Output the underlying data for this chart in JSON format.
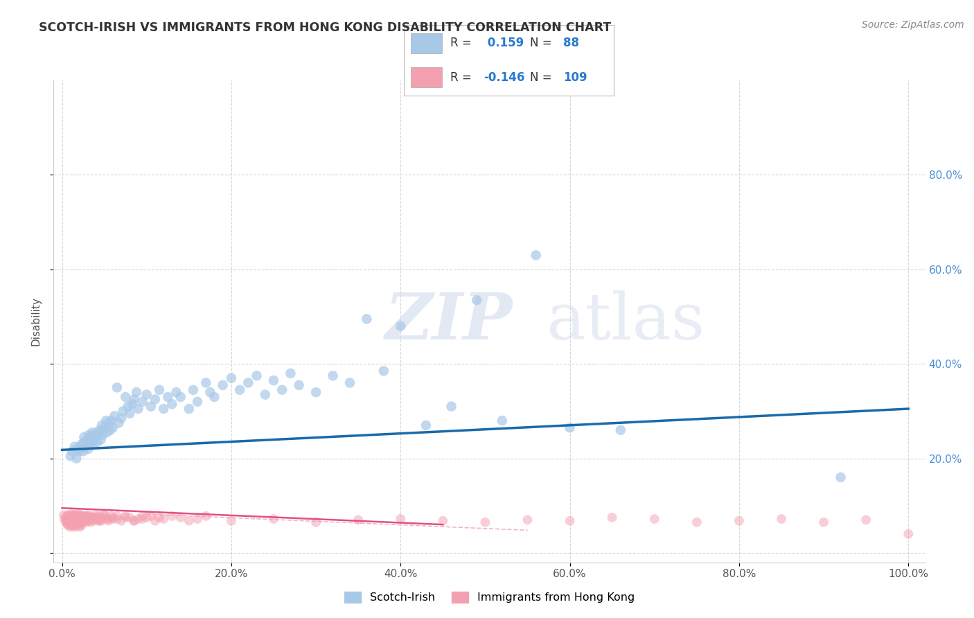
{
  "title": "SCOTCH-IRISH VS IMMIGRANTS FROM HONG KONG DISABILITY CORRELATION CHART",
  "source": "Source: ZipAtlas.com",
  "ylabel": "Disability",
  "watermark_zip": "ZIP",
  "watermark_atlas": "atlas",
  "legend_label1": "Scotch-Irish",
  "legend_label2": "Immigrants from Hong Kong",
  "r1": 0.159,
  "n1": 88,
  "r2": -0.146,
  "n2": 109,
  "color_blue": "#a8c8e8",
  "color_pink": "#f4a0b0",
  "color_line_blue": "#1a6aaa",
  "color_line_pink": "#e05080",
  "color_line_pink_dash": "#f0a0b8",
  "bg_color": "#ffffff",
  "grid_color": "#cccccc",
  "title_color": "#333333",
  "title_fontsize": 12.5,
  "source_fontsize": 10,
  "xlim": [
    -0.01,
    1.02
  ],
  "ylim": [
    -0.02,
    1.0
  ],
  "xticks": [
    0.0,
    0.2,
    0.4,
    0.6,
    0.8,
    1.0
  ],
  "yticks": [
    0.0,
    0.2,
    0.4,
    0.6,
    0.8
  ],
  "xticklabels": [
    "0.0%",
    "20.0%",
    "40.0%",
    "60.0%",
    "80.0%",
    "100.0%"
  ],
  "yticklabels_right": [
    "20.0%",
    "40.0%",
    "60.0%",
    "80.0%"
  ],
  "scotch_irish_x": [
    0.01,
    0.012,
    0.015,
    0.017,
    0.018,
    0.02,
    0.022,
    0.023,
    0.025,
    0.026,
    0.027,
    0.028,
    0.03,
    0.031,
    0.032,
    0.033,
    0.034,
    0.035,
    0.036,
    0.037,
    0.038,
    0.04,
    0.041,
    0.042,
    0.043,
    0.045,
    0.046,
    0.047,
    0.048,
    0.05,
    0.052,
    0.053,
    0.055,
    0.057,
    0.058,
    0.06,
    0.062,
    0.065,
    0.067,
    0.07,
    0.072,
    0.075,
    0.078,
    0.08,
    0.083,
    0.085,
    0.088,
    0.09,
    0.095,
    0.1,
    0.105,
    0.11,
    0.115,
    0.12,
    0.125,
    0.13,
    0.135,
    0.14,
    0.15,
    0.155,
    0.16,
    0.17,
    0.175,
    0.18,
    0.19,
    0.2,
    0.21,
    0.22,
    0.23,
    0.24,
    0.25,
    0.26,
    0.27,
    0.28,
    0.3,
    0.32,
    0.34,
    0.36,
    0.38,
    0.4,
    0.43,
    0.46,
    0.49,
    0.52,
    0.56,
    0.6,
    0.66,
    0.92
  ],
  "scotch_irish_y": [
    0.205,
    0.215,
    0.225,
    0.2,
    0.22,
    0.215,
    0.225,
    0.23,
    0.215,
    0.245,
    0.235,
    0.225,
    0.24,
    0.22,
    0.25,
    0.23,
    0.235,
    0.245,
    0.255,
    0.23,
    0.24,
    0.245,
    0.255,
    0.235,
    0.25,
    0.26,
    0.24,
    0.27,
    0.25,
    0.265,
    0.28,
    0.255,
    0.275,
    0.26,
    0.28,
    0.265,
    0.29,
    0.35,
    0.275,
    0.285,
    0.3,
    0.33,
    0.31,
    0.295,
    0.315,
    0.325,
    0.34,
    0.305,
    0.32,
    0.335,
    0.31,
    0.325,
    0.345,
    0.305,
    0.33,
    0.315,
    0.34,
    0.33,
    0.305,
    0.345,
    0.32,
    0.36,
    0.34,
    0.33,
    0.355,
    0.37,
    0.345,
    0.36,
    0.375,
    0.335,
    0.365,
    0.345,
    0.38,
    0.355,
    0.34,
    0.375,
    0.36,
    0.495,
    0.385,
    0.48,
    0.27,
    0.31,
    0.535,
    0.28,
    0.63,
    0.265,
    0.26,
    0.16
  ],
  "hk_x_dense": [
    0.002,
    0.003,
    0.004,
    0.005,
    0.005,
    0.006,
    0.006,
    0.007,
    0.007,
    0.008,
    0.008,
    0.009,
    0.009,
    0.01,
    0.01,
    0.01,
    0.011,
    0.011,
    0.012,
    0.012,
    0.013,
    0.013,
    0.014,
    0.014,
    0.015,
    0.015,
    0.015,
    0.016,
    0.016,
    0.017,
    0.017,
    0.018,
    0.018,
    0.019,
    0.019,
    0.02,
    0.02,
    0.021,
    0.021,
    0.022,
    0.022,
    0.023,
    0.023,
    0.024,
    0.024,
    0.025,
    0.026,
    0.027,
    0.028,
    0.029,
    0.03,
    0.031,
    0.032,
    0.033,
    0.034,
    0.035,
    0.036,
    0.037,
    0.038,
    0.04,
    0.041,
    0.042,
    0.044,
    0.045,
    0.046,
    0.048,
    0.05,
    0.052,
    0.055,
    0.058,
    0.06,
    0.065,
    0.07,
    0.075,
    0.08,
    0.085,
    0.09,
    0.095,
    0.1,
    0.11,
    0.12,
    0.13,
    0.14,
    0.15,
    0.16,
    0.17,
    0.05,
    0.06,
    0.04,
    0.03,
    0.02,
    0.015,
    0.012,
    0.01,
    0.008,
    0.006,
    0.025,
    0.035,
    0.045,
    0.055,
    0.065,
    0.075,
    0.085,
    0.095,
    0.105,
    0.115,
    0.018,
    0.022,
    0.028
  ],
  "hk_y_dense": [
    0.08,
    0.072,
    0.068,
    0.075,
    0.065,
    0.078,
    0.062,
    0.08,
    0.058,
    0.072,
    0.065,
    0.078,
    0.06,
    0.082,
    0.068,
    0.055,
    0.075,
    0.062,
    0.08,
    0.058,
    0.072,
    0.065,
    0.075,
    0.06,
    0.082,
    0.068,
    0.055,
    0.078,
    0.062,
    0.08,
    0.058,
    0.072,
    0.065,
    0.078,
    0.06,
    0.082,
    0.068,
    0.075,
    0.055,
    0.08,
    0.062,
    0.078,
    0.058,
    0.072,
    0.065,
    0.078,
    0.075,
    0.068,
    0.072,
    0.065,
    0.08,
    0.075,
    0.068,
    0.072,
    0.065,
    0.078,
    0.075,
    0.068,
    0.072,
    0.08,
    0.075,
    0.068,
    0.078,
    0.072,
    0.068,
    0.075,
    0.08,
    0.072,
    0.068,
    0.078,
    0.075,
    0.072,
    0.068,
    0.078,
    0.075,
    0.068,
    0.072,
    0.078,
    0.075,
    0.068,
    0.072,
    0.078,
    0.075,
    0.068,
    0.072,
    0.078,
    0.08,
    0.072,
    0.075,
    0.078,
    0.068,
    0.072,
    0.078,
    0.075,
    0.068,
    0.072,
    0.078,
    0.075,
    0.068,
    0.072,
    0.078,
    0.075,
    0.068,
    0.072,
    0.078,
    0.075,
    0.068,
    0.072,
    0.078
  ],
  "hk_x_sparse": [
    0.2,
    0.25,
    0.3,
    0.35,
    0.4,
    0.45,
    0.5,
    0.55,
    0.6,
    0.65,
    0.7,
    0.75,
    0.8,
    0.85,
    0.9,
    0.95,
    1.0
  ],
  "hk_y_sparse": [
    0.068,
    0.072,
    0.065,
    0.07,
    0.072,
    0.068,
    0.065,
    0.07,
    0.068,
    0.075,
    0.072,
    0.065,
    0.068,
    0.072,
    0.065,
    0.07,
    0.04
  ],
  "blue_line_x": [
    0.0,
    1.0
  ],
  "blue_line_y": [
    0.218,
    0.305
  ],
  "pink_line_x": [
    0.0,
    0.45
  ],
  "pink_line_y": [
    0.095,
    0.06
  ]
}
